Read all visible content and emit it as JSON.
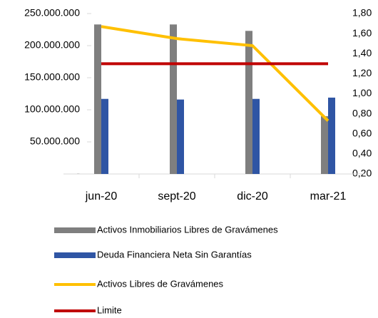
{
  "chart_data": {
    "type": "bar-line",
    "categories": [
      "jun-20",
      "sept-20",
      "dic-20",
      "mar-21"
    ],
    "series": [
      {
        "name": "Activos Inmobiliarios Libres de Gravámenes",
        "type": "bar",
        "color": "#7f7f7f",
        "values": [
          233000000,
          233000000,
          223000000,
          90000000
        ]
      },
      {
        "name": "Deuda Financiera Neta Sin Garantías",
        "type": "bar",
        "color": "#2f55a4",
        "values": [
          117000000,
          116000000,
          117000000,
          119000000
        ]
      },
      {
        "name": "Activos Libres de Gravámenes",
        "type": "line",
        "axis": "y2",
        "color": "#ffc000",
        "values": [
          1.67,
          1.55,
          1.48,
          0.73
        ]
      },
      {
        "name": "Limite",
        "type": "line",
        "axis": "y2",
        "color": "#c00000",
        "values": [
          1.3,
          1.3,
          1.3,
          1.3
        ]
      }
    ],
    "ylim": [
      0,
      250000000
    ],
    "yticks": [
      {
        "value": 0,
        "label": "-"
      },
      {
        "value": 50000000,
        "label": "50.000.000"
      },
      {
        "value": 100000000,
        "label": "100.000.000"
      },
      {
        "value": 150000000,
        "label": "150.000.000"
      },
      {
        "value": 200000000,
        "label": "200.000.000"
      },
      {
        "value": 250000000,
        "label": "250.000.000"
      }
    ],
    "y2lim": [
      0.2,
      1.8
    ],
    "y2ticks": [
      {
        "value": 0.2,
        "label": "0,20"
      },
      {
        "value": 0.4,
        "label": "0,40"
      },
      {
        "value": 0.6,
        "label": "0,60"
      },
      {
        "value": 0.8,
        "label": "0,80"
      },
      {
        "value": 1.0,
        "label": "1,00"
      },
      {
        "value": 1.2,
        "label": "1,20"
      },
      {
        "value": 1.4,
        "label": "1,40"
      },
      {
        "value": 1.6,
        "label": "1,60"
      },
      {
        "value": 1.8,
        "label": "1,80"
      }
    ]
  }
}
